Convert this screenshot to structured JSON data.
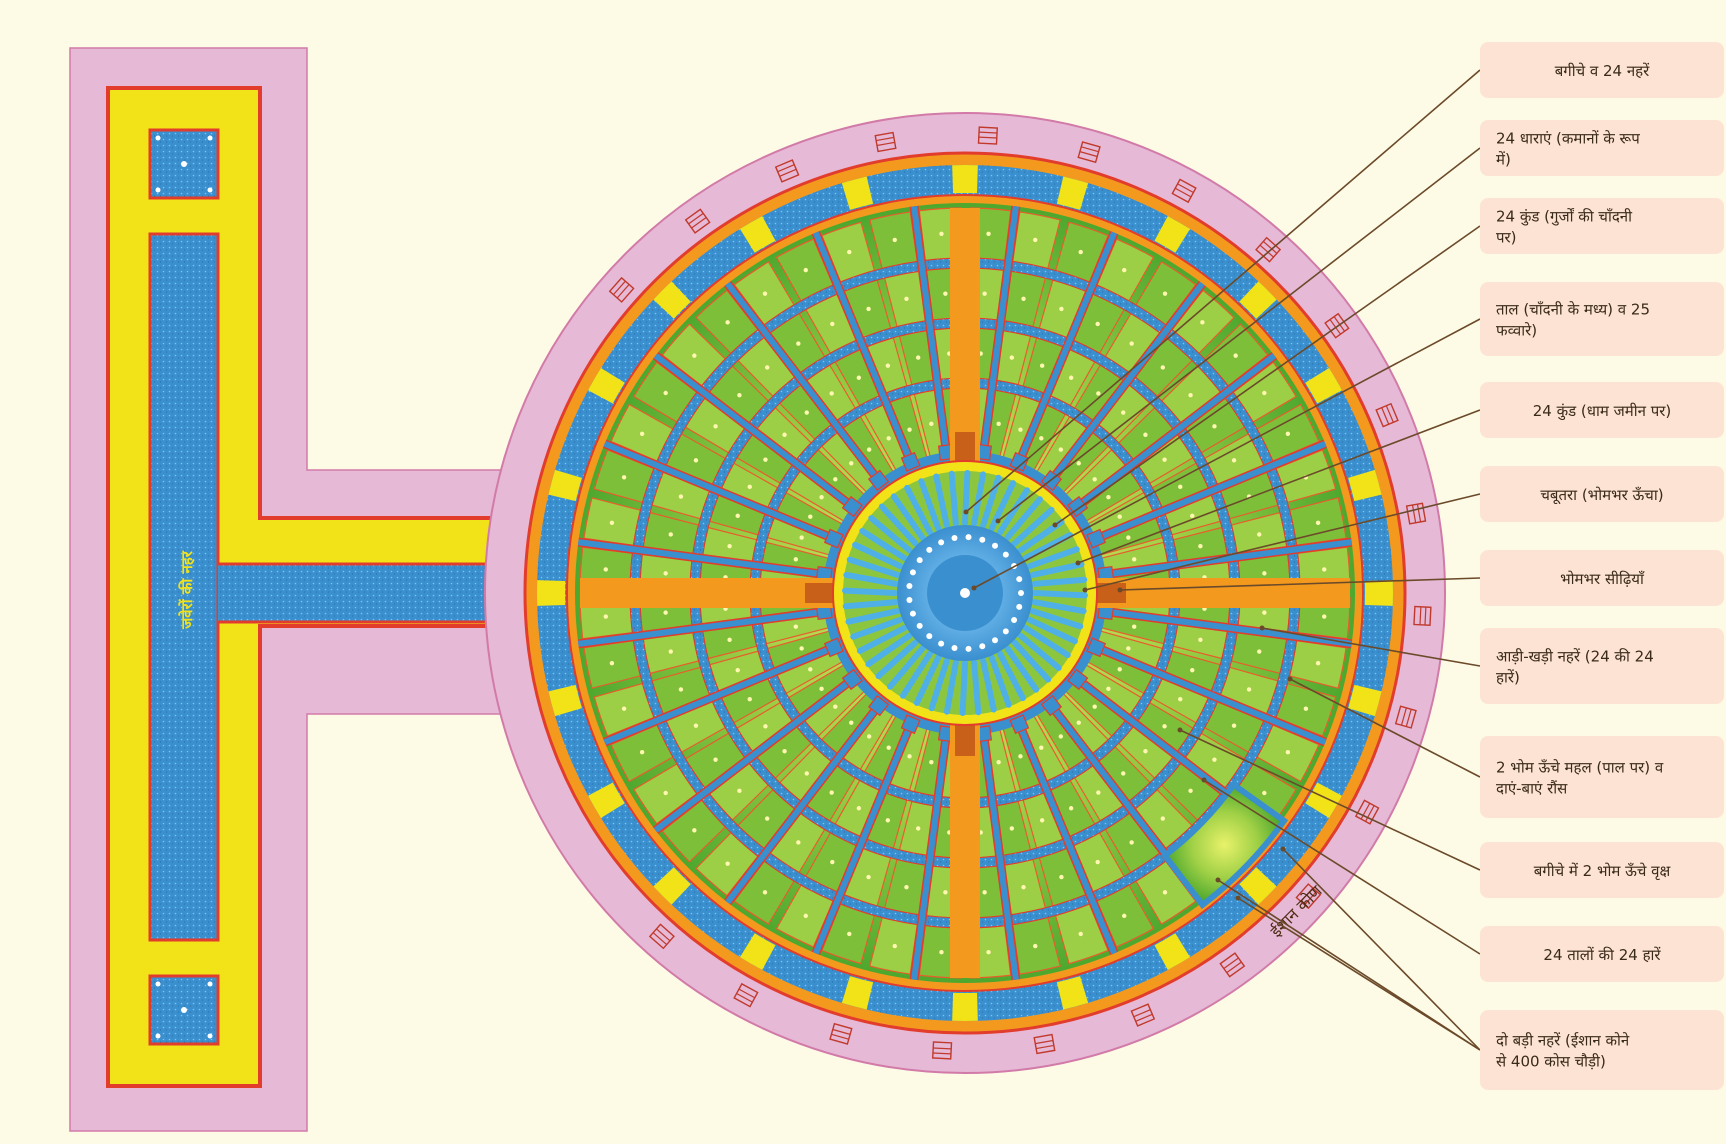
{
  "colors": {
    "background": "#fdfbe6",
    "pink_border": "#e6b9d6",
    "red_line": "#e23c2c",
    "yellow_band": "#f2e318",
    "water_blue": "#3a8fcf",
    "orange_band": "#f39a1e",
    "garden_green": "#8cc63f",
    "label_box": "#fde3d3",
    "leader_line": "#6b4a2a"
  },
  "canal_vertical_label": "जवेरों की नहर",
  "corner_label": "ईशान कोण",
  "icons": {
    "stairs": "stairs-icon",
    "fountain": "fountain-icon"
  },
  "labels": [
    {
      "id": "gardens-canals",
      "text": "बगीचे व 24 नहरें"
    },
    {
      "id": "streams-arches",
      "text": "24 धाराएं (कमानों के रूप में)"
    },
    {
      "id": "kund-gurjon",
      "text": "24 कुंड (गुर्जों की चाँदनी पर)"
    },
    {
      "id": "taal-fountains",
      "text": "ताल (चाँदनी के मध्य) व 25 फव्वारे)"
    },
    {
      "id": "kund-dham",
      "text": "24 कुंड (धाम जमीन पर)"
    },
    {
      "id": "chabutara",
      "text": "चबूतरा (भोमभर ऊँचा)"
    },
    {
      "id": "bhombhar-stairs",
      "text": "भोमभर सीढ़ियाँ"
    },
    {
      "id": "cross-canals",
      "text": "आड़ी-खड़ी नहरें (24 की 24 हारें)"
    },
    {
      "id": "palaces",
      "text": "2 भोम ऊँचे महल (पाल पर) व दाएं-बाएं रौंस"
    },
    {
      "id": "trees",
      "text": "बगीचे में 2 भोम ऊँचे वृक्ष"
    },
    {
      "id": "taal-rows",
      "text": "24 तालों की 24 हारें"
    },
    {
      "id": "big-canals",
      "text": "दो बड़ी नहरें (ईशान कोने से 400 कोस चौड़ी)"
    }
  ]
}
